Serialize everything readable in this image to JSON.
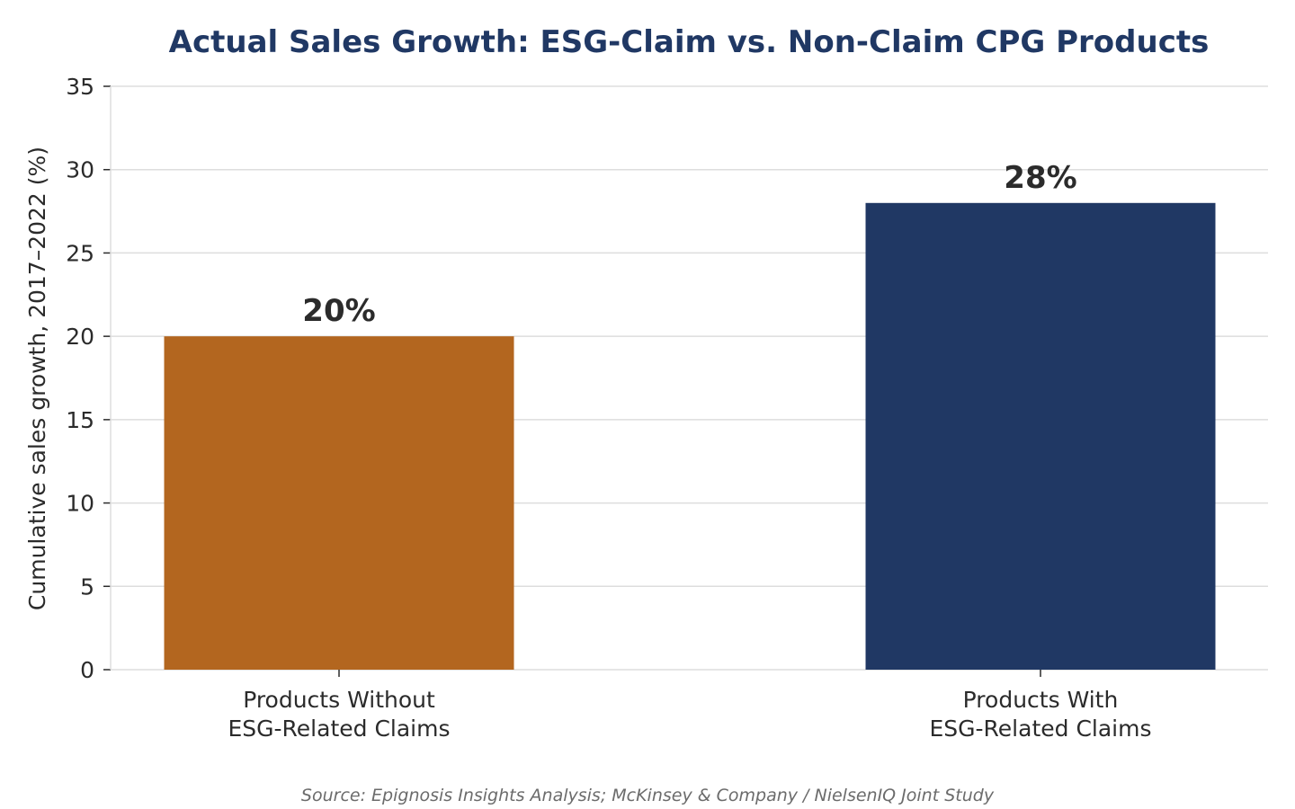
{
  "chart_data": {
    "type": "bar",
    "title": "Actual Sales Growth: ESG-Claim vs. Non-Claim CPG Products",
    "xlabel": "",
    "ylabel": "Cumulative sales growth, 2017–2022 (%)",
    "categories": [
      [
        "Products Without",
        "ESG-Related Claims"
      ],
      [
        "Products With",
        "ESG-Related Claims"
      ]
    ],
    "values": [
      20,
      28
    ],
    "value_labels": [
      "20%",
      "28%"
    ],
    "bar_colors": [
      "#b3661f",
      "#203864"
    ],
    "ylim": [
      0,
      35
    ],
    "yticks": [
      0,
      5,
      10,
      15,
      20,
      25,
      30,
      35
    ],
    "grid": true,
    "legend": "none",
    "source": "Source: Epignosis Insights Analysis; McKinsey & Company / NielsenIQ Joint Study"
  },
  "colors": {
    "title": "#203864",
    "grid": "#dddddd",
    "axis": "#dddddd",
    "text": "#2b2b2b",
    "source": "#6b6b6b"
  }
}
